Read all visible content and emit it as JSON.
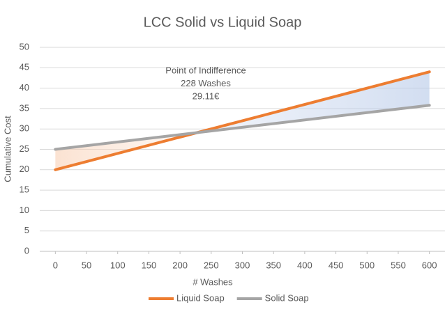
{
  "chart_data": {
    "type": "line",
    "title": "LCC Solid vs Liquid Soap",
    "x_label": "# Washes",
    "y_label": "Cumulative Cost",
    "x": [
      0,
      600
    ],
    "series": [
      {
        "name": "Liquid Soap",
        "color": "#ed7d31",
        "values": [
          20,
          44
        ]
      },
      {
        "name": "Solid Soap",
        "color": "#a5a5a5",
        "values": [
          25,
          35.8
        ]
      }
    ],
    "xlim": [
      -25,
      625
    ],
    "xticks": [
      0,
      50,
      100,
      150,
      200,
      250,
      300,
      350,
      400,
      450,
      500,
      550,
      600
    ],
    "ylim": [
      0,
      50
    ],
    "yticks": [
      0,
      5,
      10,
      15,
      20,
      25,
      30,
      35,
      40,
      45,
      50
    ],
    "grid": true,
    "legend": "bottom",
    "annotation": [
      "Point of Indifference",
      "228 Washes",
      "29.11€"
    ]
  }
}
